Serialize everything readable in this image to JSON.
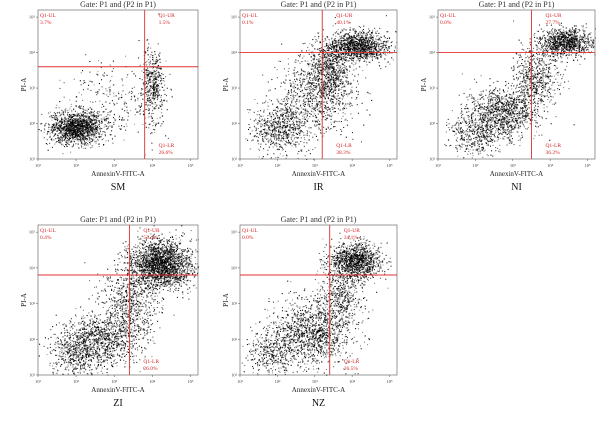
{
  "chart_data": [
    {
      "type": "scatter",
      "gate": "Gate: P1 and (P2 in P1)",
      "title": "SM",
      "xlabel": "AnnexinV-FITC-A",
      "ylabel": "PI-A",
      "xscale": "log",
      "yscale": "log",
      "xlim_exp": [
        1,
        5.2
      ],
      "ylim_exp": [
        1,
        5.2
      ],
      "x_ticks": [
        "10¹",
        "10²",
        "10³",
        "10⁴",
        "10⁵"
      ],
      "y_ticks": [
        "10¹",
        "10²",
        "10³",
        "10⁴",
        "10⁵"
      ],
      "gate_x": "10^3.8",
      "gate_y": "10^3.6",
      "quadrants": [
        {
          "name": "Q1-UL",
          "pct": "3.7%"
        },
        {
          "name": "Q1-UR",
          "pct": "1.5%"
        },
        {
          "name": "Q1-LR",
          "pct": "26.6%"
        }
      ],
      "clusters": [
        {
          "x": 2.0,
          "y": 1.9,
          "sx": 0.35,
          "sy": 0.22,
          "n": 1500
        },
        {
          "x": 4.0,
          "y": 3.0,
          "sx": 0.18,
          "sy": 0.55,
          "n": 350
        },
        {
          "x": 2.9,
          "y": 2.6,
          "sx": 0.6,
          "sy": 0.55,
          "n": 250
        },
        {
          "x": 4.0,
          "y": 3.3,
          "sx": 0.12,
          "sy": 0.35,
          "n": 120
        }
      ]
    },
    {
      "type": "scatter",
      "gate": "Gate: P1 and (P2 in P1)",
      "title": "IR",
      "xlabel": "AnnexinV-FITC-A",
      "ylabel": "PI-A",
      "xscale": "log",
      "yscale": "log",
      "xlim_exp": [
        1,
        5.2
      ],
      "ylim_exp": [
        1,
        5.2
      ],
      "x_ticks": [
        "10¹",
        "10²",
        "10³",
        "10⁴",
        "10⁵"
      ],
      "y_ticks": [
        "10¹",
        "10²",
        "10³",
        "10⁴",
        "10⁵"
      ],
      "gate_x": "10^3.2",
      "gate_y": "10^4.0",
      "quadrants": [
        {
          "name": "Q1-UL",
          "pct": "0.1%"
        },
        {
          "name": "Q1-UR",
          "pct": "40.1%"
        },
        {
          "name": "Q1-LR",
          "pct": "38.3%"
        }
      ],
      "clusters": [
        {
          "x": 4.1,
          "y": 4.2,
          "sx": 0.42,
          "sy": 0.2,
          "n": 1300
        },
        {
          "x": 3.1,
          "y": 2.9,
          "sx": 0.5,
          "sy": 0.55,
          "n": 900
        },
        {
          "x": 2.1,
          "y": 1.9,
          "sx": 0.4,
          "sy": 0.35,
          "n": 700
        },
        {
          "x": 3.4,
          "y": 3.5,
          "sx": 0.25,
          "sy": 0.35,
          "n": 500
        }
      ]
    },
    {
      "type": "scatter",
      "gate": "Gate: P1 and (P2 in P1)",
      "title": "NI",
      "xlabel": "AnnexinV-FITC-A",
      "ylabel": "PI-A",
      "xscale": "log",
      "yscale": "log",
      "xlim_exp": [
        1,
        5.2
      ],
      "ylim_exp": [
        1,
        5.2
      ],
      "x_ticks": [
        "10¹",
        "10²",
        "10³",
        "10⁴",
        "10⁵"
      ],
      "y_ticks": [
        "10¹",
        "10²",
        "10³",
        "10⁴",
        "10⁵"
      ],
      "gate_x": "10^3.5",
      "gate_y": "10^4.0",
      "quadrants": [
        {
          "name": "Q1-UL",
          "pct": "0.0%"
        },
        {
          "name": "Q1-UR",
          "pct": "27.7%"
        },
        {
          "name": "Q1-LR",
          "pct": "36.2%"
        }
      ],
      "clusters": [
        {
          "x": 4.4,
          "y": 4.3,
          "sx": 0.35,
          "sy": 0.2,
          "n": 1000
        },
        {
          "x": 2.7,
          "y": 2.3,
          "sx": 0.45,
          "sy": 0.35,
          "n": 1100
        },
        {
          "x": 3.6,
          "y": 3.3,
          "sx": 0.3,
          "sy": 0.45,
          "n": 600
        },
        {
          "x": 2.0,
          "y": 1.7,
          "sx": 0.35,
          "sy": 0.3,
          "n": 400
        }
      ]
    },
    {
      "type": "scatter",
      "gate": "Gate: P1 and (P2 in P1)",
      "title": "ZI",
      "xlabel": "AnnexinV-FITC-A",
      "ylabel": "PI-A",
      "xscale": "log",
      "yscale": "log",
      "xlim_exp": [
        1,
        5.2
      ],
      "ylim_exp": [
        1,
        5.2
      ],
      "x_ticks": [
        "10¹",
        "10²",
        "10³",
        "10⁴",
        "10⁵"
      ],
      "y_ticks": [
        "10¹",
        "10²",
        "10³",
        "10⁴",
        "10⁵"
      ],
      "gate_x": "10^3.4",
      "gate_y": "10^3.8",
      "quadrants": [
        {
          "name": "Q1-UL",
          "pct": "0.4%"
        },
        {
          "name": "Q1-UR",
          "pct": "53.4%"
        },
        {
          "name": "Q1-LR",
          "pct": "26.0%"
        }
      ],
      "clusters": [
        {
          "x": 4.2,
          "y": 4.1,
          "sx": 0.4,
          "sy": 0.33,
          "n": 2200
        },
        {
          "x": 2.6,
          "y": 2.0,
          "sx": 0.5,
          "sy": 0.35,
          "n": 1000
        },
        {
          "x": 3.4,
          "y": 3.0,
          "sx": 0.35,
          "sy": 0.55,
          "n": 700
        },
        {
          "x": 2.0,
          "y": 1.6,
          "sx": 0.35,
          "sy": 0.3,
          "n": 400
        }
      ]
    },
    {
      "type": "scatter",
      "gate": "Gate: P1 and (P2 in P1)",
      "title": "NZ",
      "xlabel": "AnnexinV-FITC-A",
      "ylabel": "PI-A",
      "xscale": "log",
      "yscale": "log",
      "xlim_exp": [
        1,
        5.2
      ],
      "ylim_exp": [
        1,
        5.2
      ],
      "x_ticks": [
        "10¹",
        "10²",
        "10³",
        "10⁴",
        "10⁵"
      ],
      "y_ticks": [
        "10¹",
        "10²",
        "10³",
        "10⁴",
        "10⁵"
      ],
      "gate_x": "10^3.4",
      "gate_y": "10^3.8",
      "quadrants": [
        {
          "name": "Q1-UL",
          "pct": "0.0%"
        },
        {
          "name": "Q1-UR",
          "pct": "34.1%"
        },
        {
          "name": "Q1-LR",
          "pct": "26.5%"
        }
      ],
      "clusters": [
        {
          "x": 4.1,
          "y": 4.2,
          "sx": 0.33,
          "sy": 0.25,
          "n": 1200
        },
        {
          "x": 2.9,
          "y": 2.2,
          "sx": 0.55,
          "sy": 0.45,
          "n": 1300
        },
        {
          "x": 3.7,
          "y": 3.3,
          "sx": 0.3,
          "sy": 0.45,
          "n": 500
        },
        {
          "x": 1.8,
          "y": 1.6,
          "sx": 0.35,
          "sy": 0.3,
          "n": 350
        }
      ]
    }
  ]
}
